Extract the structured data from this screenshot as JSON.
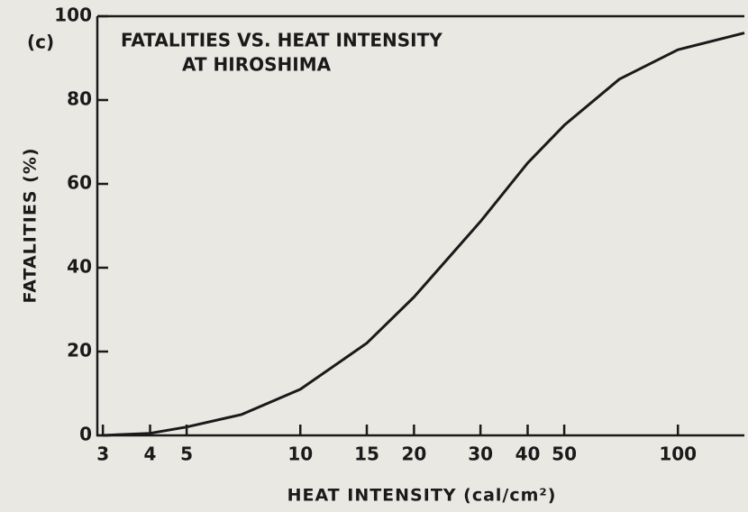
{
  "chart_data": {
    "type": "line",
    "panel_label": "(c)",
    "title": [
      "FATALITIES VS. HEAT INTENSITY",
      "AT HIROSHIMA"
    ],
    "x_label": "HEAT INTENSITY (cal/cm²)",
    "y_label": "FATALITIES (%)",
    "x_scale": "log",
    "x": [
      3,
      4,
      5,
      7,
      10,
      15,
      20,
      30,
      40,
      50,
      70,
      100,
      150
    ],
    "series": [
      {
        "color": "#1a1a1a",
        "values": [
          0,
          0.5,
          2,
          5,
          11,
          22,
          33,
          51,
          65,
          74,
          85,
          92,
          96
        ]
      }
    ],
    "xlim": [
      2.9,
      150
    ],
    "ylim": [
      0,
      100
    ],
    "xticks": [
      3,
      4,
      5,
      10,
      15,
      20,
      30,
      40,
      50,
      100
    ],
    "yticks": [
      0,
      20,
      40,
      60,
      80,
      100
    ]
  }
}
